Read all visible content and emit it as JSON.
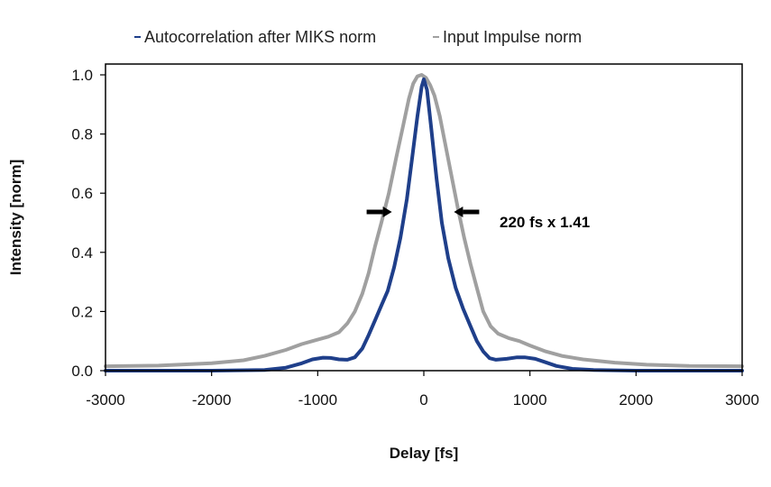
{
  "chart_data": {
    "type": "line",
    "xlabel": "Delay [fs]",
    "ylabel": "Intensity [norm]",
    "xlim": [
      -3000,
      3000
    ],
    "ylim": [
      0,
      1.0
    ],
    "xticks": [
      -3000,
      -2000,
      -1000,
      0,
      1000,
      2000,
      3000
    ],
    "yticks": [
      0,
      0.2,
      0.4,
      0.6,
      0.8,
      1.0
    ],
    "xtick_labels": [
      "-3000",
      "-2000",
      "-1000",
      "0",
      "1000",
      "2000",
      "3000"
    ],
    "ytick_labels": [
      "0.0",
      "0.2",
      "0.4",
      "0.6",
      "0.8",
      "1.0"
    ],
    "grid": false,
    "legend_position": "top",
    "series": [
      {
        "name": "Autocorrelation after MIKS norm",
        "color": "#1f3f8a",
        "points": [
          [
            -3000,
            0.0
          ],
          [
            -2000,
            0.0
          ],
          [
            -1500,
            0.002
          ],
          [
            -1300,
            0.01
          ],
          [
            -1150,
            0.025
          ],
          [
            -1050,
            0.038
          ],
          [
            -950,
            0.044
          ],
          [
            -880,
            0.043
          ],
          [
            -800,
            0.038
          ],
          [
            -720,
            0.037
          ],
          [
            -650,
            0.045
          ],
          [
            -580,
            0.075
          ],
          [
            -520,
            0.12
          ],
          [
            -460,
            0.17
          ],
          [
            -400,
            0.22
          ],
          [
            -340,
            0.27
          ],
          [
            -280,
            0.35
          ],
          [
            -220,
            0.45
          ],
          [
            -160,
            0.58
          ],
          [
            -110,
            0.72
          ],
          [
            -60,
            0.86
          ],
          [
            -20,
            0.96
          ],
          [
            0,
            0.985
          ],
          [
            30,
            0.95
          ],
          [
            70,
            0.82
          ],
          [
            120,
            0.65
          ],
          [
            170,
            0.5
          ],
          [
            230,
            0.38
          ],
          [
            300,
            0.28
          ],
          [
            370,
            0.21
          ],
          [
            440,
            0.15
          ],
          [
            500,
            0.1
          ],
          [
            560,
            0.065
          ],
          [
            620,
            0.042
          ],
          [
            680,
            0.037
          ],
          [
            780,
            0.04
          ],
          [
            880,
            0.045
          ],
          [
            950,
            0.045
          ],
          [
            1050,
            0.04
          ],
          [
            1150,
            0.028
          ],
          [
            1250,
            0.016
          ],
          [
            1400,
            0.006
          ],
          [
            1600,
            0.002
          ],
          [
            2000,
            0.0
          ],
          [
            3000,
            0.0
          ]
        ]
      },
      {
        "name": "Input Impulse norm",
        "color": "#a0a0a0",
        "points": [
          [
            -3000,
            0.015
          ],
          [
            -2500,
            0.017
          ],
          [
            -2000,
            0.025
          ],
          [
            -1700,
            0.035
          ],
          [
            -1500,
            0.05
          ],
          [
            -1300,
            0.07
          ],
          [
            -1150,
            0.09
          ],
          [
            -1000,
            0.105
          ],
          [
            -900,
            0.115
          ],
          [
            -800,
            0.13
          ],
          [
            -720,
            0.16
          ],
          [
            -650,
            0.2
          ],
          [
            -580,
            0.26
          ],
          [
            -520,
            0.33
          ],
          [
            -460,
            0.42
          ],
          [
            -400,
            0.5
          ],
          [
            -330,
            0.6
          ],
          [
            -260,
            0.72
          ],
          [
            -200,
            0.82
          ],
          [
            -140,
            0.92
          ],
          [
            -100,
            0.97
          ],
          [
            -60,
            0.995
          ],
          [
            -20,
            1.0
          ],
          [
            20,
            0.99
          ],
          [
            60,
            0.965
          ],
          [
            100,
            0.93
          ],
          [
            150,
            0.86
          ],
          [
            200,
            0.77
          ],
          [
            260,
            0.66
          ],
          [
            320,
            0.55
          ],
          [
            380,
            0.45
          ],
          [
            440,
            0.36
          ],
          [
            500,
            0.28
          ],
          [
            560,
            0.2
          ],
          [
            630,
            0.15
          ],
          [
            700,
            0.125
          ],
          [
            800,
            0.11
          ],
          [
            900,
            0.1
          ],
          [
            1000,
            0.085
          ],
          [
            1150,
            0.065
          ],
          [
            1300,
            0.05
          ],
          [
            1500,
            0.038
          ],
          [
            1800,
            0.027
          ],
          [
            2100,
            0.02
          ],
          [
            2500,
            0.016
          ],
          [
            3000,
            0.015
          ]
        ]
      }
    ],
    "annotation": {
      "text": "220 fs x 1.41",
      "arrow_left_tip_x": -250,
      "arrow_right_tip_x": 250,
      "arrow_y": 0.5
    }
  }
}
